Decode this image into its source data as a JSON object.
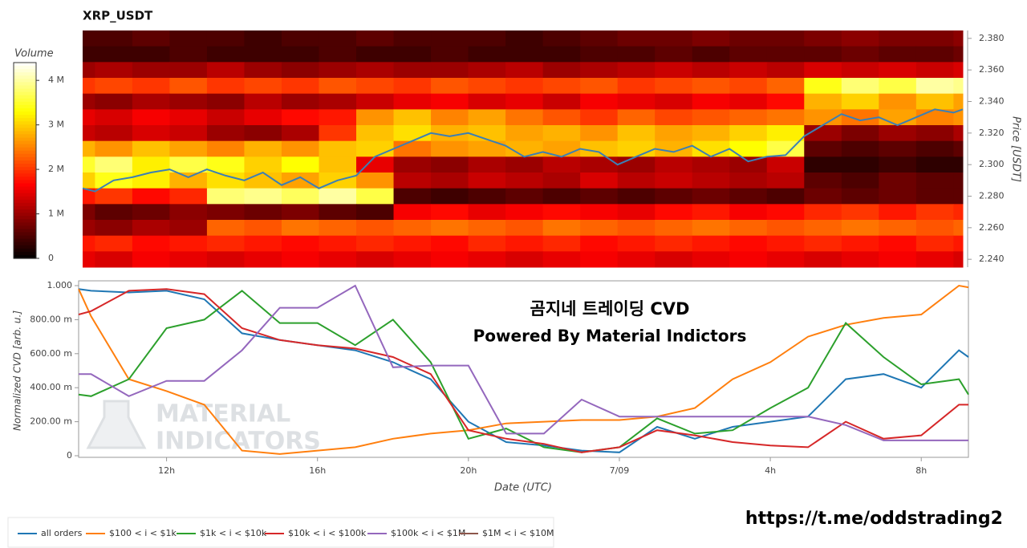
{
  "chart_data": [
    {
      "type": "heatmap",
      "title": "XRP_USDT",
      "colorbar_label": "Volume",
      "ylabel": "Price [USDT]",
      "colormap": "hot",
      "clim": [
        0,
        4.4
      ],
      "cticks": [
        0,
        {
          "value": 1,
          "label": "1 M"
        },
        {
          "value": 2,
          "label": "2 M"
        },
        {
          "value": 3,
          "label": "3 M"
        },
        {
          "value": 4,
          "label": "4 M"
        }
      ],
      "xlim": [
        9.67,
        33.25
      ],
      "ylim": [
        2.235,
        2.385
      ],
      "yticks": [
        {
          "value": 2.24,
          "label": "2.240"
        },
        {
          "value": 2.26,
          "label": "2.260"
        },
        {
          "value": 2.28,
          "label": "2.280"
        },
        {
          "value": 2.3,
          "label": "2.300"
        },
        {
          "value": 2.32,
          "label": "2.320"
        },
        {
          "value": 2.34,
          "label": "2.340"
        },
        {
          "value": 2.36,
          "label": "2.360"
        },
        {
          "value": 2.38,
          "label": "2.380"
        }
      ],
      "x_bins": [
        9.67,
        10,
        11,
        12,
        13,
        14,
        15,
        16,
        17,
        18,
        19,
        20,
        21,
        22,
        23,
        24,
        25,
        26,
        27,
        28,
        29,
        30,
        31,
        32,
        33,
        33.25
      ],
      "y_bins": [
        2.385,
        2.375,
        2.365,
        2.355,
        2.345,
        2.335,
        2.325,
        2.315,
        2.305,
        2.295,
        2.285,
        2.275,
        2.265,
        2.255,
        2.245,
        2.235
      ],
      "values": [
        [
          0.5,
          0.5,
          0.6,
          0.5,
          0.5,
          0.4,
          0.5,
          0.5,
          0.6,
          0.5,
          0.5,
          0.5,
          0.4,
          0.5,
          0.6,
          0.7,
          0.7,
          0.8,
          0.7,
          0.7,
          0.8,
          0.9,
          0.8,
          0.8,
          0.9
        ],
        [
          0.4,
          0.4,
          0.4,
          0.5,
          0.4,
          0.4,
          0.4,
          0.5,
          0.4,
          0.4,
          0.5,
          0.4,
          0.4,
          0.4,
          0.5,
          0.5,
          0.6,
          0.5,
          0.6,
          0.6,
          0.6,
          0.7,
          0.6,
          0.6,
          0.7
        ],
        [
          1.0,
          1.1,
          1.0,
          1.0,
          1.2,
          1.0,
          0.9,
          1.0,
          1.1,
          1.0,
          1.0,
          1.1,
          1.2,
          1.0,
          1.1,
          1.2,
          1.3,
          1.2,
          1.3,
          1.2,
          1.4,
          1.3,
          1.4,
          1.3,
          1.4
        ],
        [
          2.0,
          2.1,
          2.0,
          2.2,
          2.0,
          2.1,
          2.0,
          2.2,
          2.1,
          2.0,
          2.2,
          2.1,
          2.0,
          2.1,
          2.2,
          2.0,
          2.1,
          2.2,
          2.1,
          2.3,
          3.4,
          3.8,
          3.6,
          4.0,
          3.9
        ],
        [
          1.0,
          0.9,
          1.1,
          1.0,
          0.9,
          1.2,
          1.0,
          1.1,
          1.3,
          1.5,
          1.6,
          1.4,
          1.5,
          1.3,
          1.6,
          1.5,
          1.4,
          1.6,
          1.5,
          1.7,
          2.8,
          3.0,
          2.6,
          2.9,
          2.7
        ],
        [
          1.5,
          1.4,
          1.6,
          1.5,
          1.3,
          1.5,
          1.7,
          1.8,
          2.6,
          2.9,
          2.5,
          2.7,
          2.4,
          2.2,
          2.0,
          2.3,
          2.1,
          2.2,
          2.3,
          2.4,
          2.6,
          2.4,
          2.7,
          2.5,
          2.6
        ],
        [
          1.3,
          1.2,
          1.4,
          1.3,
          1.0,
          0.9,
          1.1,
          2.0,
          2.9,
          3.1,
          2.8,
          2.9,
          2.7,
          2.8,
          2.6,
          2.9,
          2.7,
          2.8,
          3.0,
          3.2,
          1.0,
          0.8,
          1.0,
          0.9,
          1.1
        ],
        [
          2.8,
          2.6,
          2.9,
          2.7,
          2.5,
          2.8,
          2.6,
          2.9,
          3.0,
          2.4,
          2.6,
          2.7,
          2.8,
          2.7,
          2.9,
          3.0,
          2.8,
          3.1,
          3.3,
          3.6,
          0.6,
          0.5,
          0.6,
          0.5,
          0.6
        ],
        [
          3.5,
          3.8,
          3.2,
          3.6,
          3.4,
          3.0,
          3.3,
          2.9,
          1.5,
          1.0,
          0.9,
          1.1,
          1.0,
          1.2,
          1.1,
          1.0,
          1.2,
          1.1,
          1.0,
          1.3,
          0.3,
          0.3,
          0.4,
          0.3,
          0.3
        ],
        [
          3.0,
          3.4,
          3.2,
          2.8,
          3.1,
          2.9,
          2.7,
          3.0,
          2.6,
          1.2,
          1.1,
          1.3,
          1.2,
          1.1,
          1.4,
          1.2,
          1.3,
          1.2,
          1.1,
          1.2,
          0.6,
          0.5,
          0.7,
          0.6,
          0.6
        ],
        [
          1.8,
          2.0,
          1.7,
          1.9,
          3.8,
          3.9,
          3.7,
          4.0,
          3.6,
          0.5,
          0.4,
          0.5,
          0.6,
          0.5,
          0.6,
          0.5,
          0.6,
          0.7,
          0.6,
          0.5,
          0.7,
          0.6,
          0.7,
          0.6,
          0.6
        ],
        [
          0.8,
          0.6,
          0.7,
          0.9,
          0.8,
          0.7,
          0.8,
          0.6,
          0.5,
          1.6,
          1.7,
          1.5,
          1.6,
          1.7,
          1.6,
          1.5,
          1.7,
          1.8,
          1.6,
          1.7,
          1.9,
          2.0,
          1.8,
          2.0,
          1.9
        ],
        [
          1.0,
          0.9,
          1.1,
          1.0,
          2.3,
          2.2,
          2.4,
          2.3,
          2.2,
          2.3,
          2.4,
          2.3,
          2.2,
          2.4,
          2.3,
          2.2,
          2.3,
          2.4,
          2.3,
          2.2,
          2.3,
          2.4,
          2.3,
          2.2,
          2.3
        ],
        [
          1.8,
          1.9,
          1.7,
          1.8,
          1.9,
          1.8,
          1.7,
          1.8,
          1.9,
          1.8,
          1.7,
          1.9,
          1.8,
          1.9,
          1.7,
          1.8,
          1.9,
          1.8,
          1.7,
          1.8,
          1.9,
          1.8,
          1.7,
          1.9,
          1.8
        ],
        [
          1.5,
          1.4,
          1.6,
          1.5,
          1.4,
          1.5,
          1.6,
          1.5,
          1.4,
          1.5,
          1.6,
          1.5,
          1.4,
          1.5,
          1.6,
          1.5,
          1.4,
          1.5,
          1.6,
          1.5,
          1.4,
          1.5,
          1.6,
          1.5,
          1.4
        ]
      ],
      "price_line": {
        "color": "#3b7fb5",
        "x": [
          9.67,
          10,
          10.5,
          11,
          11.5,
          12,
          12.5,
          13,
          13.5,
          14,
          14.5,
          15,
          15.5,
          16,
          16.5,
          17,
          17.5,
          18,
          18.5,
          19,
          19.5,
          20,
          20.5,
          21,
          21.5,
          22,
          22.5,
          23,
          23.5,
          24,
          24.5,
          25,
          25.5,
          26,
          26.5,
          27,
          27.5,
          28,
          28.5,
          29,
          29.5,
          30,
          30.5,
          31,
          31.5,
          32,
          32.5,
          33,
          33.25
        ],
        "values": [
          2.285,
          2.283,
          2.29,
          2.292,
          2.295,
          2.297,
          2.292,
          2.297,
          2.293,
          2.29,
          2.295,
          2.287,
          2.292,
          2.285,
          2.29,
          2.293,
          2.305,
          2.31,
          2.315,
          2.32,
          2.318,
          2.32,
          2.316,
          2.312,
          2.305,
          2.308,
          2.305,
          2.31,
          2.308,
          2.3,
          2.305,
          2.31,
          2.308,
          2.312,
          2.305,
          2.31,
          2.302,
          2.305,
          2.306,
          2.318,
          2.325,
          2.332,
          2.328,
          2.33,
          2.325,
          2.33,
          2.335,
          2.333,
          2.335
        ]
      }
    },
    {
      "type": "line",
      "ylabel": "Normalized CVD [arb. u.]",
      "xlabel": "Date (UTC)",
      "annotations": [
        "곰지네 트레이딩 CVD",
        "Powered By Material Indictors"
      ],
      "watermark": [
        "MATERIAL",
        "INDICATORS"
      ],
      "xlim": [
        9.67,
        33.25
      ],
      "xticks": [
        {
          "value": 12,
          "label": "12h"
        },
        {
          "value": 16,
          "label": "16h"
        },
        {
          "value": 20,
          "label": "20h"
        },
        {
          "value": 24,
          "label": "7/09"
        },
        {
          "value": 28,
          "label": "4h"
        },
        {
          "value": 32,
          "label": "8h"
        }
      ],
      "ylim": [
        0,
        1
      ],
      "yticks": [
        0,
        {
          "value": 0.2,
          "label": "200.00 m"
        },
        {
          "value": 0.4,
          "label": "400.00 m"
        },
        {
          "value": 0.6,
          "label": "600.00 m"
        },
        {
          "value": 0.8,
          "label": "800.00 m"
        },
        {
          "value": 1,
          "label": "1.000"
        }
      ],
      "x": [
        9.67,
        10,
        11,
        12,
        13,
        14,
        15,
        16,
        17,
        18,
        19,
        20,
        21,
        22,
        23,
        24,
        25,
        26,
        27,
        28,
        29,
        30,
        31,
        32,
        33,
        33.25
      ],
      "series": [
        {
          "name": "all orders",
          "color": "#1f77b4",
          "values": [
            0.98,
            0.97,
            0.96,
            0.97,
            0.92,
            0.72,
            0.68,
            0.65,
            0.62,
            0.55,
            0.45,
            0.2,
            0.08,
            0.06,
            0.03,
            0.02,
            0.17,
            0.1,
            0.17,
            0.2,
            0.23,
            0.45,
            0.48,
            0.4,
            0.62,
            0.58
          ]
        },
        {
          "name": "$100 < i < $1k",
          "color": "#ff7f0e",
          "values": [
            0.98,
            0.82,
            0.45,
            0.38,
            0.3,
            0.03,
            0.01,
            0.03,
            0.05,
            0.1,
            0.13,
            0.15,
            0.19,
            0.2,
            0.21,
            0.21,
            0.23,
            0.28,
            0.45,
            0.55,
            0.7,
            0.77,
            0.81,
            0.83,
            1.0,
            0.99
          ]
        },
        {
          "name": "$1k < i < $10k",
          "color": "#2ca02c",
          "values": [
            0.36,
            0.35,
            0.45,
            0.75,
            0.8,
            0.97,
            0.78,
            0.78,
            0.65,
            0.8,
            0.55,
            0.1,
            0.16,
            0.05,
            0.02,
            0.05,
            0.22,
            0.13,
            0.15,
            0.28,
            0.4,
            0.78,
            0.58,
            0.42,
            0.45,
            0.36
          ]
        },
        {
          "name": "$10k < i < $100k",
          "color": "#d62728",
          "values": [
            0.83,
            0.85,
            0.97,
            0.98,
            0.95,
            0.75,
            0.68,
            0.65,
            0.63,
            0.58,
            0.48,
            0.15,
            0.1,
            0.07,
            0.02,
            0.05,
            0.15,
            0.12,
            0.08,
            0.06,
            0.05,
            0.2,
            0.1,
            0.12,
            0.3,
            0.3
          ]
        },
        {
          "name": "$100k < i < $1M",
          "color": "#9467bd",
          "values": [
            0.48,
            0.48,
            0.35,
            0.44,
            0.44,
            0.62,
            0.87,
            0.87,
            1.0,
            0.52,
            0.53,
            0.53,
            0.13,
            0.13,
            0.33,
            0.23,
            0.23,
            0.23,
            0.23,
            0.23,
            0.23,
            0.18,
            0.09,
            0.09,
            0.09,
            0.09
          ]
        },
        {
          "name": "$1M < i < $10M",
          "color": "#8c564b",
          "values": [
            null,
            null,
            null,
            null,
            null,
            null,
            null,
            null,
            null,
            null,
            null,
            null,
            null,
            null,
            null,
            null,
            null,
            null,
            null,
            null,
            null,
            null,
            null,
            null,
            null,
            null
          ]
        }
      ]
    }
  ],
  "footer": "https://t.me/oddstrading2"
}
